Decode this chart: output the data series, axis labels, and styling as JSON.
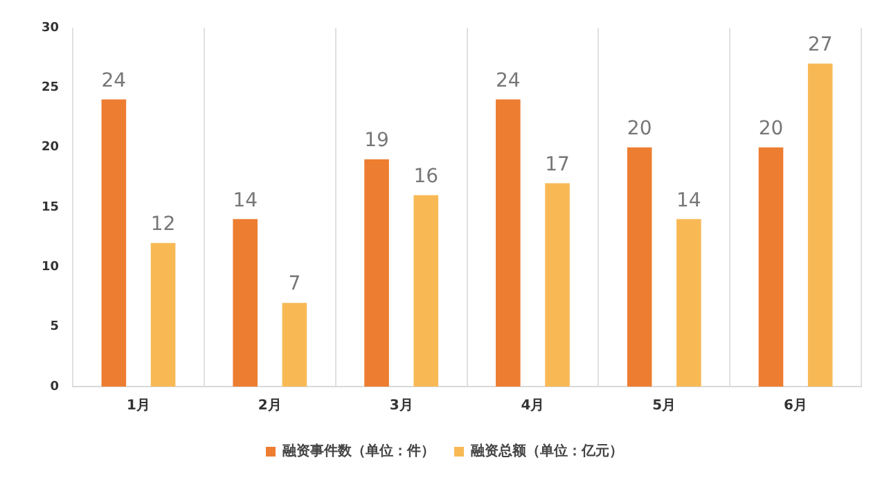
{
  "chart_data": {
    "type": "bar",
    "categories": [
      "1月",
      "2月",
      "3月",
      "4月",
      "5月",
      "6月"
    ],
    "series": [
      {
        "name": "融资事件数（单位：件）",
        "color": "#ed7d31",
        "values": [
          24,
          14,
          19,
          24,
          20,
          20
        ]
      },
      {
        "name": "融资总额（单位：亿元）",
        "color": "#f8b955",
        "values": [
          12,
          7,
          16,
          17,
          14,
          27
        ]
      }
    ],
    "ylim": [
      0,
      30
    ],
    "yticks": [
      0,
      5,
      10,
      15,
      20,
      25,
      30
    ],
    "grid": "x",
    "legend": "bottom",
    "data_labels": true
  }
}
